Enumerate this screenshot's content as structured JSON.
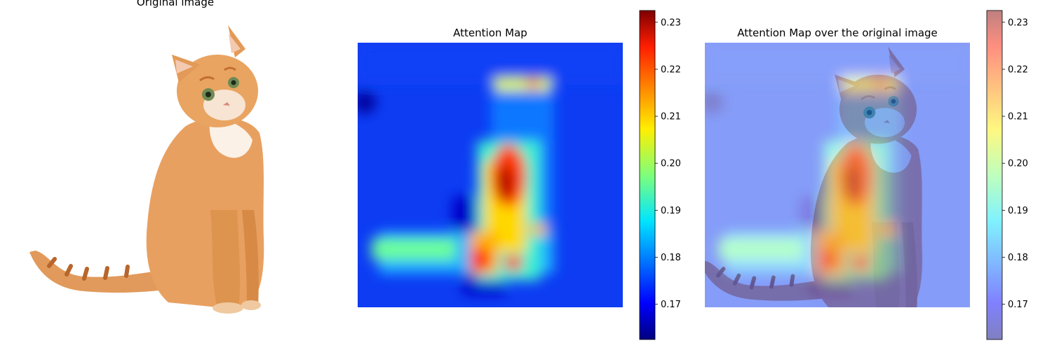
{
  "chart_data": [
    {
      "type": "image",
      "title": "Original image"
    },
    {
      "type": "heatmap",
      "title": "Attention Map",
      "colormap": "jet",
      "axes": "off",
      "colorbar": {
        "range": [
          0.1625,
          0.2325
        ],
        "ticks": [
          "0.17",
          "0.18",
          "0.19",
          "0.20",
          "0.21",
          "0.22",
          "0.23"
        ],
        "tick_values": [
          0.17,
          0.18,
          0.19,
          0.2,
          0.21,
          0.22,
          0.23
        ],
        "alpha": 1.0
      },
      "hotspots": [
        {
          "label": "body",
          "value": 0.226
        },
        {
          "label": "left-paw",
          "value": 0.223
        },
        {
          "label": "right-paw",
          "value": 0.222
        },
        {
          "label": "tail",
          "value": 0.2
        },
        {
          "label": "head-top",
          "value": 0.21
        }
      ],
      "background_value": 0.177,
      "min_value": 0.166
    },
    {
      "type": "heatmap-overlay",
      "title": "Attention Map over the original image",
      "colormap": "jet",
      "axes": "off",
      "colorbar": {
        "range": [
          0.1625,
          0.2325
        ],
        "ticks": [
          "0.17",
          "0.18",
          "0.19",
          "0.20",
          "0.21",
          "0.22",
          "0.23"
        ],
        "tick_values": [
          0.17,
          0.18,
          0.19,
          0.2,
          0.21,
          0.22,
          0.23
        ],
        "alpha": 0.5
      }
    }
  ],
  "colors": {
    "cat_fur": "#e8a060",
    "cat_fur_dark": "#c46f2f",
    "cat_chest": "#fbf1e6",
    "cat_eye": "#6f8a54"
  }
}
